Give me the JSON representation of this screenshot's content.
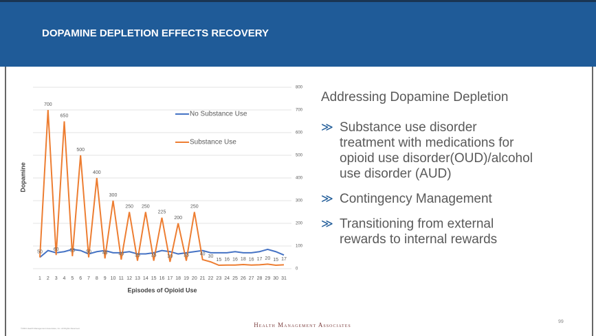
{
  "header": {
    "title": "DOPAMINE DEPLETION EFFECTS RECOVERY"
  },
  "chart_data": {
    "type": "line",
    "ylabel": "Dopamine",
    "xlabel": "Episodes of Opioid Use",
    "categories": [
      "1",
      "2",
      "3",
      "4",
      "5",
      "6",
      "7",
      "8",
      "9",
      "10",
      "11",
      "12",
      "13",
      "14",
      "15",
      "16",
      "17",
      "18",
      "19",
      "20",
      "21",
      "22",
      "23",
      "24",
      "25",
      "26",
      "27",
      "28",
      "29",
      "30",
      "31"
    ],
    "series": [
      {
        "name": "No Substance Use",
        "color": "#4472c4",
        "values": [
          50,
          80,
          70,
          75,
          85,
          80,
          65,
          75,
          80,
          70,
          70,
          75,
          65,
          65,
          70,
          80,
          75,
          65,
          70,
          75,
          80,
          70,
          70,
          70,
          75,
          70,
          70,
          75,
          85,
          75,
          60
        ]
      },
      {
        "name": "Substance Use",
        "color": "#ed7d31",
        "values": [
          50,
          700,
          60,
          650,
          55,
          500,
          50,
          400,
          45,
          300,
          40,
          250,
          35,
          250,
          35,
          225,
          30,
          200,
          35,
          250,
          40,
          30,
          15,
          16,
          16,
          18,
          16,
          17,
          20,
          15,
          17
        ]
      }
    ],
    "ylim": [
      0,
      800
    ],
    "yticks": [
      0,
      100,
      200,
      300,
      400,
      500,
      600,
      700,
      800
    ],
    "grid": true,
    "legend": "top-right"
  },
  "content": {
    "heading": "Addressing Dopamine Depletion",
    "bullets": [
      {
        "lines": [
          "Substance use disorder",
          "treatment with medications for",
          "opioid use disorder(OUD)/alcohol",
          "use disorder (AUD)"
        ]
      },
      {
        "lines": [
          "Contingency Management"
        ]
      },
      {
        "lines": [
          "Transitioning from external",
          "rewards to internal rewards"
        ]
      }
    ]
  },
  "footer": {
    "copyright": "©2024 Health Management Associates, Inc. All Rights Reserved.",
    "brand": "Health Management Associates",
    "page": "99"
  }
}
